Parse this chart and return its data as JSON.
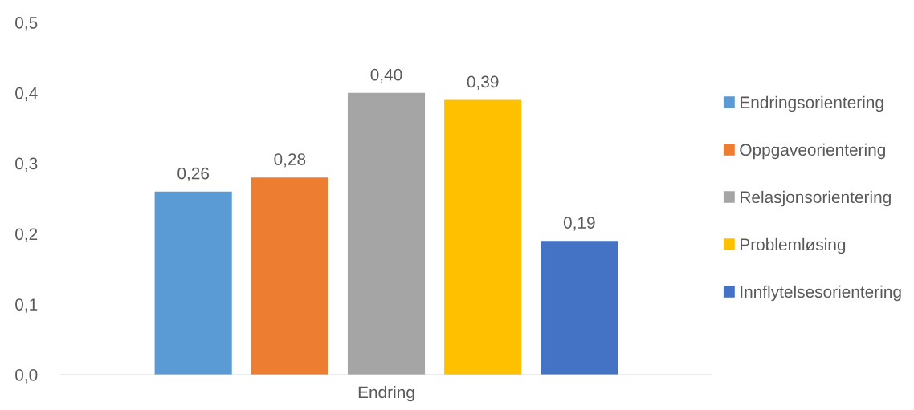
{
  "chart_data": {
    "type": "bar",
    "categories": [
      "Endring"
    ],
    "series": [
      {
        "name": "Endringsorientering",
        "color": "#5b9bd5",
        "values": [
          0.26
        ],
        "value_labels": [
          "0,26"
        ]
      },
      {
        "name": "Oppgaveorientering",
        "color": "#ed7d31",
        "values": [
          0.28
        ],
        "value_labels": [
          "0,28"
        ]
      },
      {
        "name": "Relasjonsorientering",
        "color": "#a5a5a5",
        "values": [
          0.4
        ],
        "value_labels": [
          "0,40"
        ]
      },
      {
        "name": "Problemløsing",
        "color": "#ffc000",
        "values": [
          0.39
        ],
        "value_labels": [
          "0,39"
        ]
      },
      {
        "name": "Innflytelsesorientering",
        "color": "#4472c4",
        "values": [
          0.19
        ],
        "value_labels": [
          "0,19"
        ]
      }
    ],
    "ylim": [
      0,
      0.5
    ],
    "yticks": [
      {
        "value": 0,
        "label": "0,0"
      },
      {
        "value": 0.1,
        "label": "0,1"
      },
      {
        "value": 0.2,
        "label": "0,2"
      },
      {
        "value": 0.3,
        "label": "0,3"
      },
      {
        "value": 0.4,
        "label": "0,4"
      },
      {
        "value": 0.5,
        "label": "0,5"
      }
    ],
    "grid": false,
    "legend": "right"
  }
}
